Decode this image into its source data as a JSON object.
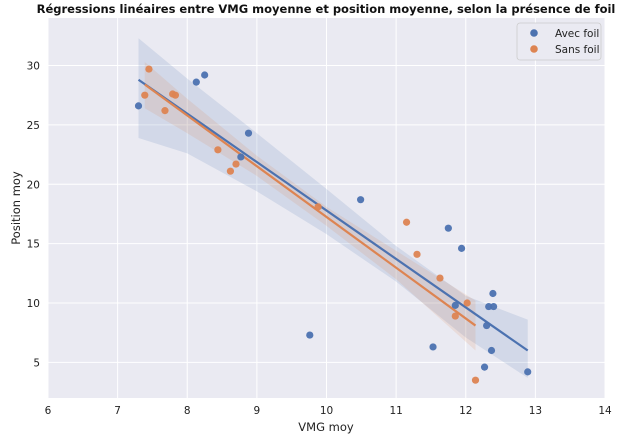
{
  "chart_data": {
    "type": "scatter",
    "title": "Régressions linéaires entre VMG moyenne et position moyenne, selon la présence de foil",
    "xlabel": "VMG moy",
    "ylabel": "Position moy",
    "xlim": [
      6,
      14
    ],
    "ylim": [
      2,
      34
    ],
    "xticks": [
      "6",
      "7",
      "8",
      "9",
      "10",
      "11",
      "12",
      "13",
      "14"
    ],
    "yticks": [
      "5",
      "10",
      "15",
      "20",
      "25",
      "30"
    ],
    "grid": true,
    "legend_position": "top-right",
    "series": [
      {
        "name": "Avec foil",
        "color": "#4c72b0",
        "points": [
          [
            7.3,
            26.6
          ],
          [
            8.13,
            28.6
          ],
          [
            8.25,
            29.2
          ],
          [
            8.77,
            22.3
          ],
          [
            8.88,
            24.3
          ],
          [
            9.76,
            7.3
          ],
          [
            10.49,
            18.7
          ],
          [
            11.53,
            6.3
          ],
          [
            11.75,
            16.3
          ],
          [
            11.85,
            9.8
          ],
          [
            11.94,
            14.6
          ],
          [
            12.27,
            4.6
          ],
          [
            12.3,
            8.1
          ],
          [
            12.33,
            9.7
          ],
          [
            12.37,
            6.0
          ],
          [
            12.39,
            10.8
          ],
          [
            12.4,
            9.7
          ],
          [
            12.89,
            4.2
          ]
        ],
        "fit": {
          "x": [
            7.3,
            12.89
          ],
          "y": [
            28.8,
            6.0
          ]
        },
        "ci_band": {
          "x": [
            7.3,
            8.0,
            9.0,
            10.0,
            11.0,
            12.0,
            12.89
          ],
          "upper": [
            32.3,
            28.9,
            24.3,
            19.6,
            14.8,
            10.6,
            8.6
          ],
          "lower": [
            23.9,
            22.6,
            19.4,
            15.8,
            11.8,
            7.1,
            3.7
          ]
        }
      },
      {
        "name": "Sans foil",
        "color": "#dd8452",
        "points": [
          [
            7.39,
            27.5
          ],
          [
            7.45,
            29.7
          ],
          [
            7.68,
            26.2
          ],
          [
            7.79,
            27.6
          ],
          [
            7.83,
            27.5
          ],
          [
            8.44,
            22.9
          ],
          [
            8.62,
            21.1
          ],
          [
            8.7,
            21.7
          ],
          [
            9.88,
            18.1
          ],
          [
            11.15,
            16.8
          ],
          [
            11.3,
            14.1
          ],
          [
            11.63,
            12.1
          ],
          [
            11.85,
            8.9
          ],
          [
            12.02,
            10.0
          ],
          [
            12.14,
            3.5
          ]
        ],
        "fit": {
          "x": [
            7.39,
            12.14
          ],
          "y": [
            28.4,
            8.1
          ]
        },
        "ci_band": {
          "x": [
            7.39,
            8.0,
            9.0,
            10.0,
            11.0,
            12.14
          ],
          "upper": [
            30.3,
            27.2,
            22.4,
            18.1,
            14.4,
            10.2
          ],
          "lower": [
            26.4,
            24.3,
            20.7,
            16.5,
            12.0,
            6.0
          ]
        }
      }
    ]
  },
  "colors": {
    "plot_background": "#eaeaf2",
    "grid": "#ffffff"
  }
}
